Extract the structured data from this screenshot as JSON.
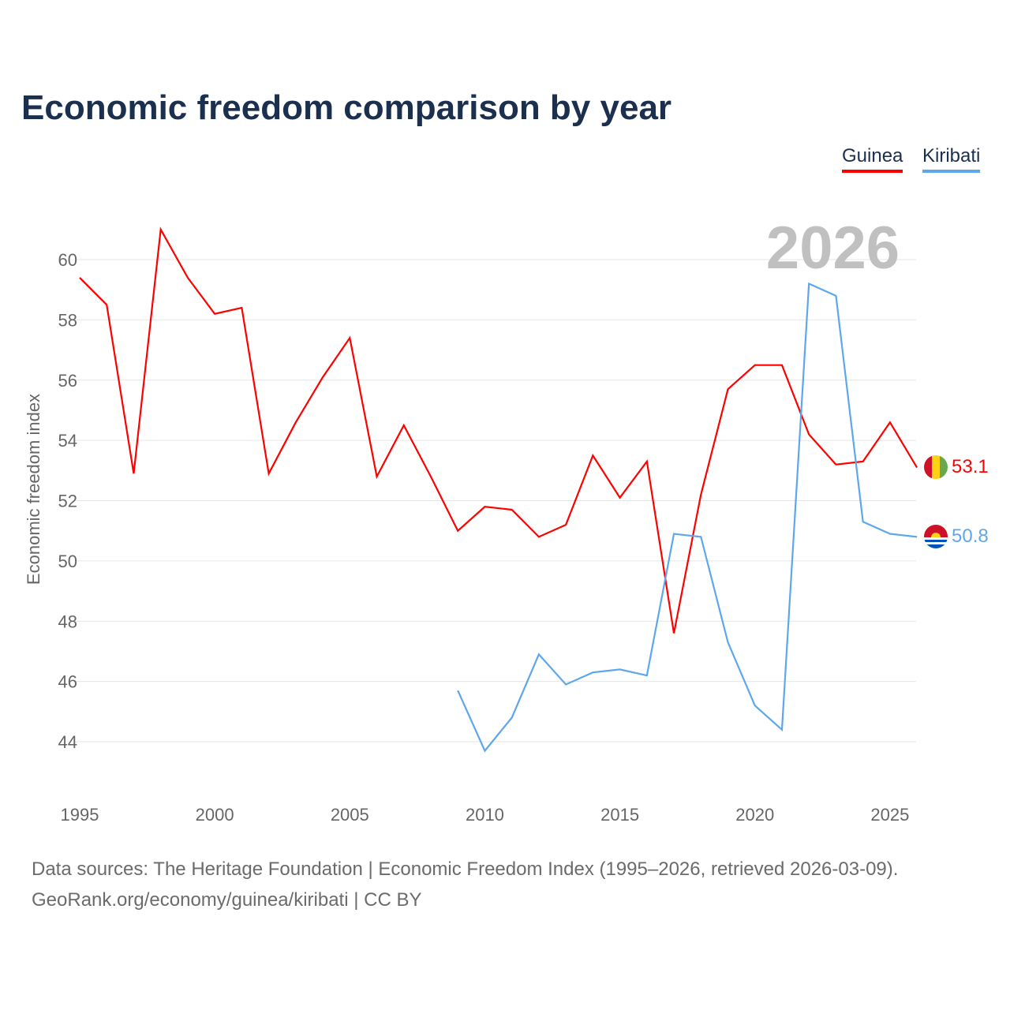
{
  "chart_data": {
    "type": "line",
    "title": "Economic freedom comparison by year",
    "ylabel": "Economic freedom index",
    "xlabel": "",
    "year_watermark": "2026",
    "ylim": [
      42.5,
      61.5
    ],
    "xlim": [
      1995,
      2026
    ],
    "yticks": [
      "44",
      "46",
      "48",
      "50",
      "52",
      "54",
      "56",
      "58",
      "60"
    ],
    "xticks": [
      "1995",
      "2000",
      "2005",
      "2010",
      "2015",
      "2020",
      "2025"
    ],
    "grid": true,
    "legend_position": "top-right",
    "series": [
      {
        "name": "Guinea",
        "color": "#ff0000",
        "end_label": "53.1",
        "x": [
          1995,
          1996,
          1997,
          1998,
          1999,
          2000,
          2001,
          2002,
          2003,
          2004,
          2005,
          2006,
          2007,
          2008,
          2009,
          2010,
          2011,
          2012,
          2013,
          2014,
          2015,
          2016,
          2017,
          2018,
          2019,
          2020,
          2021,
          2022,
          2023,
          2024,
          2025,
          2026
        ],
        "values": [
          59.4,
          58.5,
          52.9,
          61.0,
          59.4,
          58.2,
          58.4,
          52.9,
          54.6,
          56.1,
          57.4,
          52.8,
          54.5,
          52.8,
          51.0,
          51.8,
          51.7,
          50.8,
          51.2,
          53.5,
          52.1,
          53.3,
          47.6,
          52.2,
          55.7,
          56.5,
          56.5,
          54.2,
          53.2,
          53.3,
          54.6,
          53.1
        ]
      },
      {
        "name": "Kiribati",
        "color": "#5ea7ec",
        "end_label": "50.8",
        "x": [
          2009,
          2010,
          2011,
          2012,
          2013,
          2014,
          2015,
          2016,
          2017,
          2018,
          2019,
          2020,
          2021,
          2022,
          2023,
          2024,
          2025,
          2026
        ],
        "values": [
          45.7,
          43.7,
          44.8,
          46.9,
          45.9,
          46.3,
          46.4,
          46.2,
          50.9,
          50.8,
          47.3,
          45.2,
          44.4,
          59.2,
          58.8,
          51.3,
          50.9,
          50.8
        ]
      }
    ]
  },
  "footer": {
    "line1": "Data sources: The Heritage Foundation | Economic Freedom Index (1995–2026, retrieved 2026-03-09).",
    "line2": "GeoRank.org/economy/guinea/kiribati | CC BY"
  }
}
